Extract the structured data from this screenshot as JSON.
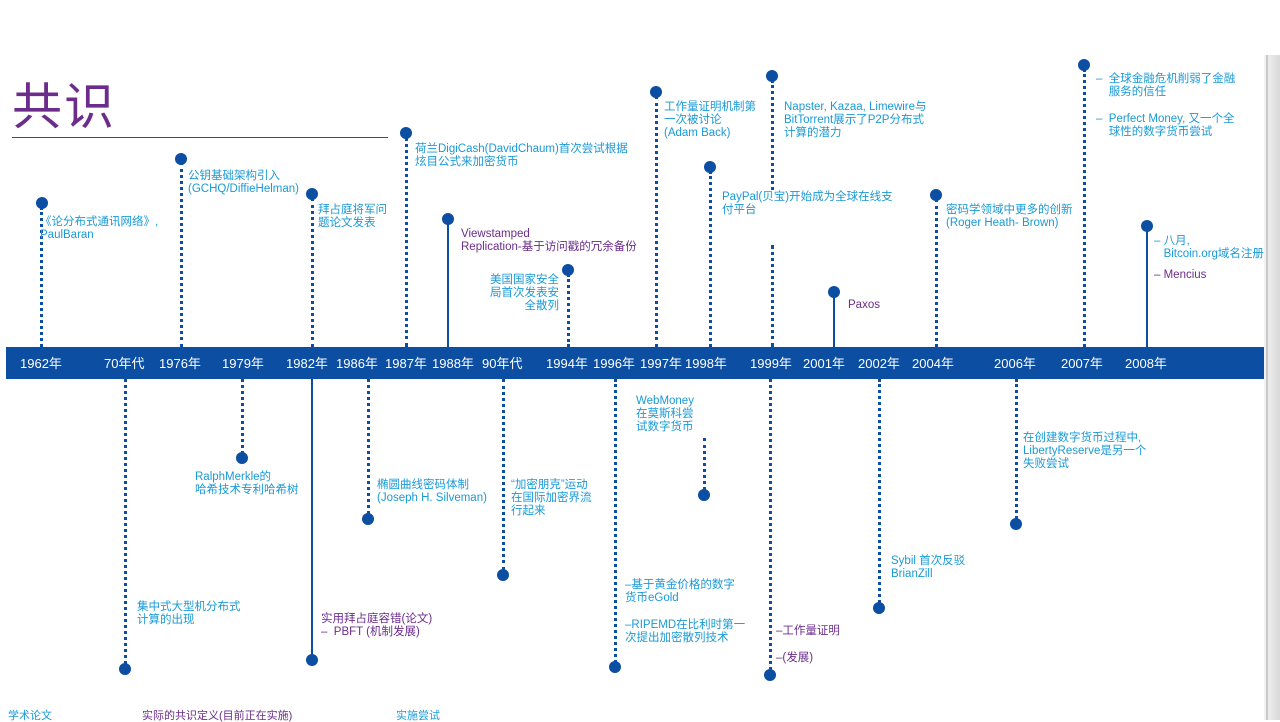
{
  "title": "共识",
  "years": [
    "1962年",
    "70年代",
    "1976年",
    "1979年",
    "1982年",
    "1986年",
    "1987年",
    "1988年",
    "90年代",
    "1994年",
    "1996年",
    "1997年",
    "1998年",
    "1999年",
    "2001年",
    "2002年",
    "2004年",
    "2006年",
    "2007年",
    "2008年"
  ],
  "events": {
    "baran": "《论分布式通讯网络》,\nPaulBaran",
    "pki": "公钥基础架构引入\n(GCHQ/DiffieHelman)",
    "byzantine": "拜占庭将军问\n题论文发表",
    "digicash": "荷兰DigiCash(DavidChaum)首次尝试根据\n炫目公式来加密货币",
    "viewstamped": "Viewstamped\nReplication-基于访问戳的冗余备份",
    "nsa": "美国国家安全\n局首次发表安\n全散列",
    "pow_first": "工作量证明机制第\n一次被讨论\n(Adam Back)",
    "p2p": "Napster, Kazaa, Limewire与\nBitTorrent展示了P2P分布式\n计算的潜力",
    "paypal": "PayPal(贝宝)开始成为全球在线支\n付平台",
    "paxos": "Paxos",
    "crypto_innov": "密码学领域中更多的创新\n(Roger Heath- Brown)",
    "crisis": "–  全球金融危机削弱了金融\n    服务的信任",
    "perfect_money": "–  Perfect Money, 又一个全\n    球性的数字货币尝试",
    "bitcoin_domain": "– 八月,\n   Bitcoin.org域名注册",
    "mencius": "– Mencius",
    "mainframe": "集中式大型机分布式\n计算的出现",
    "merkle": "RalphMerkle的\n哈希技术专利哈希树",
    "pbft": "实用拜占庭容错(论文)\n–  PBFT (机制发展)",
    "ecc": "椭圆曲线密码体制\n(Joseph H. Silveman)",
    "cypherpunk": "“加密朋克”运动\n在国际加密界流\n行起来",
    "egold": "–基于黄金价格的数字\n货币eGold",
    "ripemd": "–RIPEMD在比利时第一\n次提出加密散列技术",
    "webmoney": "WebMoney\n在莫斯科尝\n试数字货币",
    "pow_proof": "–工作量证明",
    "pow_dev": "–(发展)",
    "sybil": "Sybil 首次反驳\nBrianZill",
    "libertyreserve": "在创建数字货币过程中,\nLibertyReserve是另一个\n失败尝试"
  },
  "legend": {
    "academic": "学术论文",
    "consensus_def": "实际的共识定义(目前正在实施)",
    "implementation": "实施尝试"
  },
  "colors": {
    "bar": "#0b4ea2",
    "blue_text": "#1a9ad6",
    "purple_text": "#6b2c8c"
  }
}
